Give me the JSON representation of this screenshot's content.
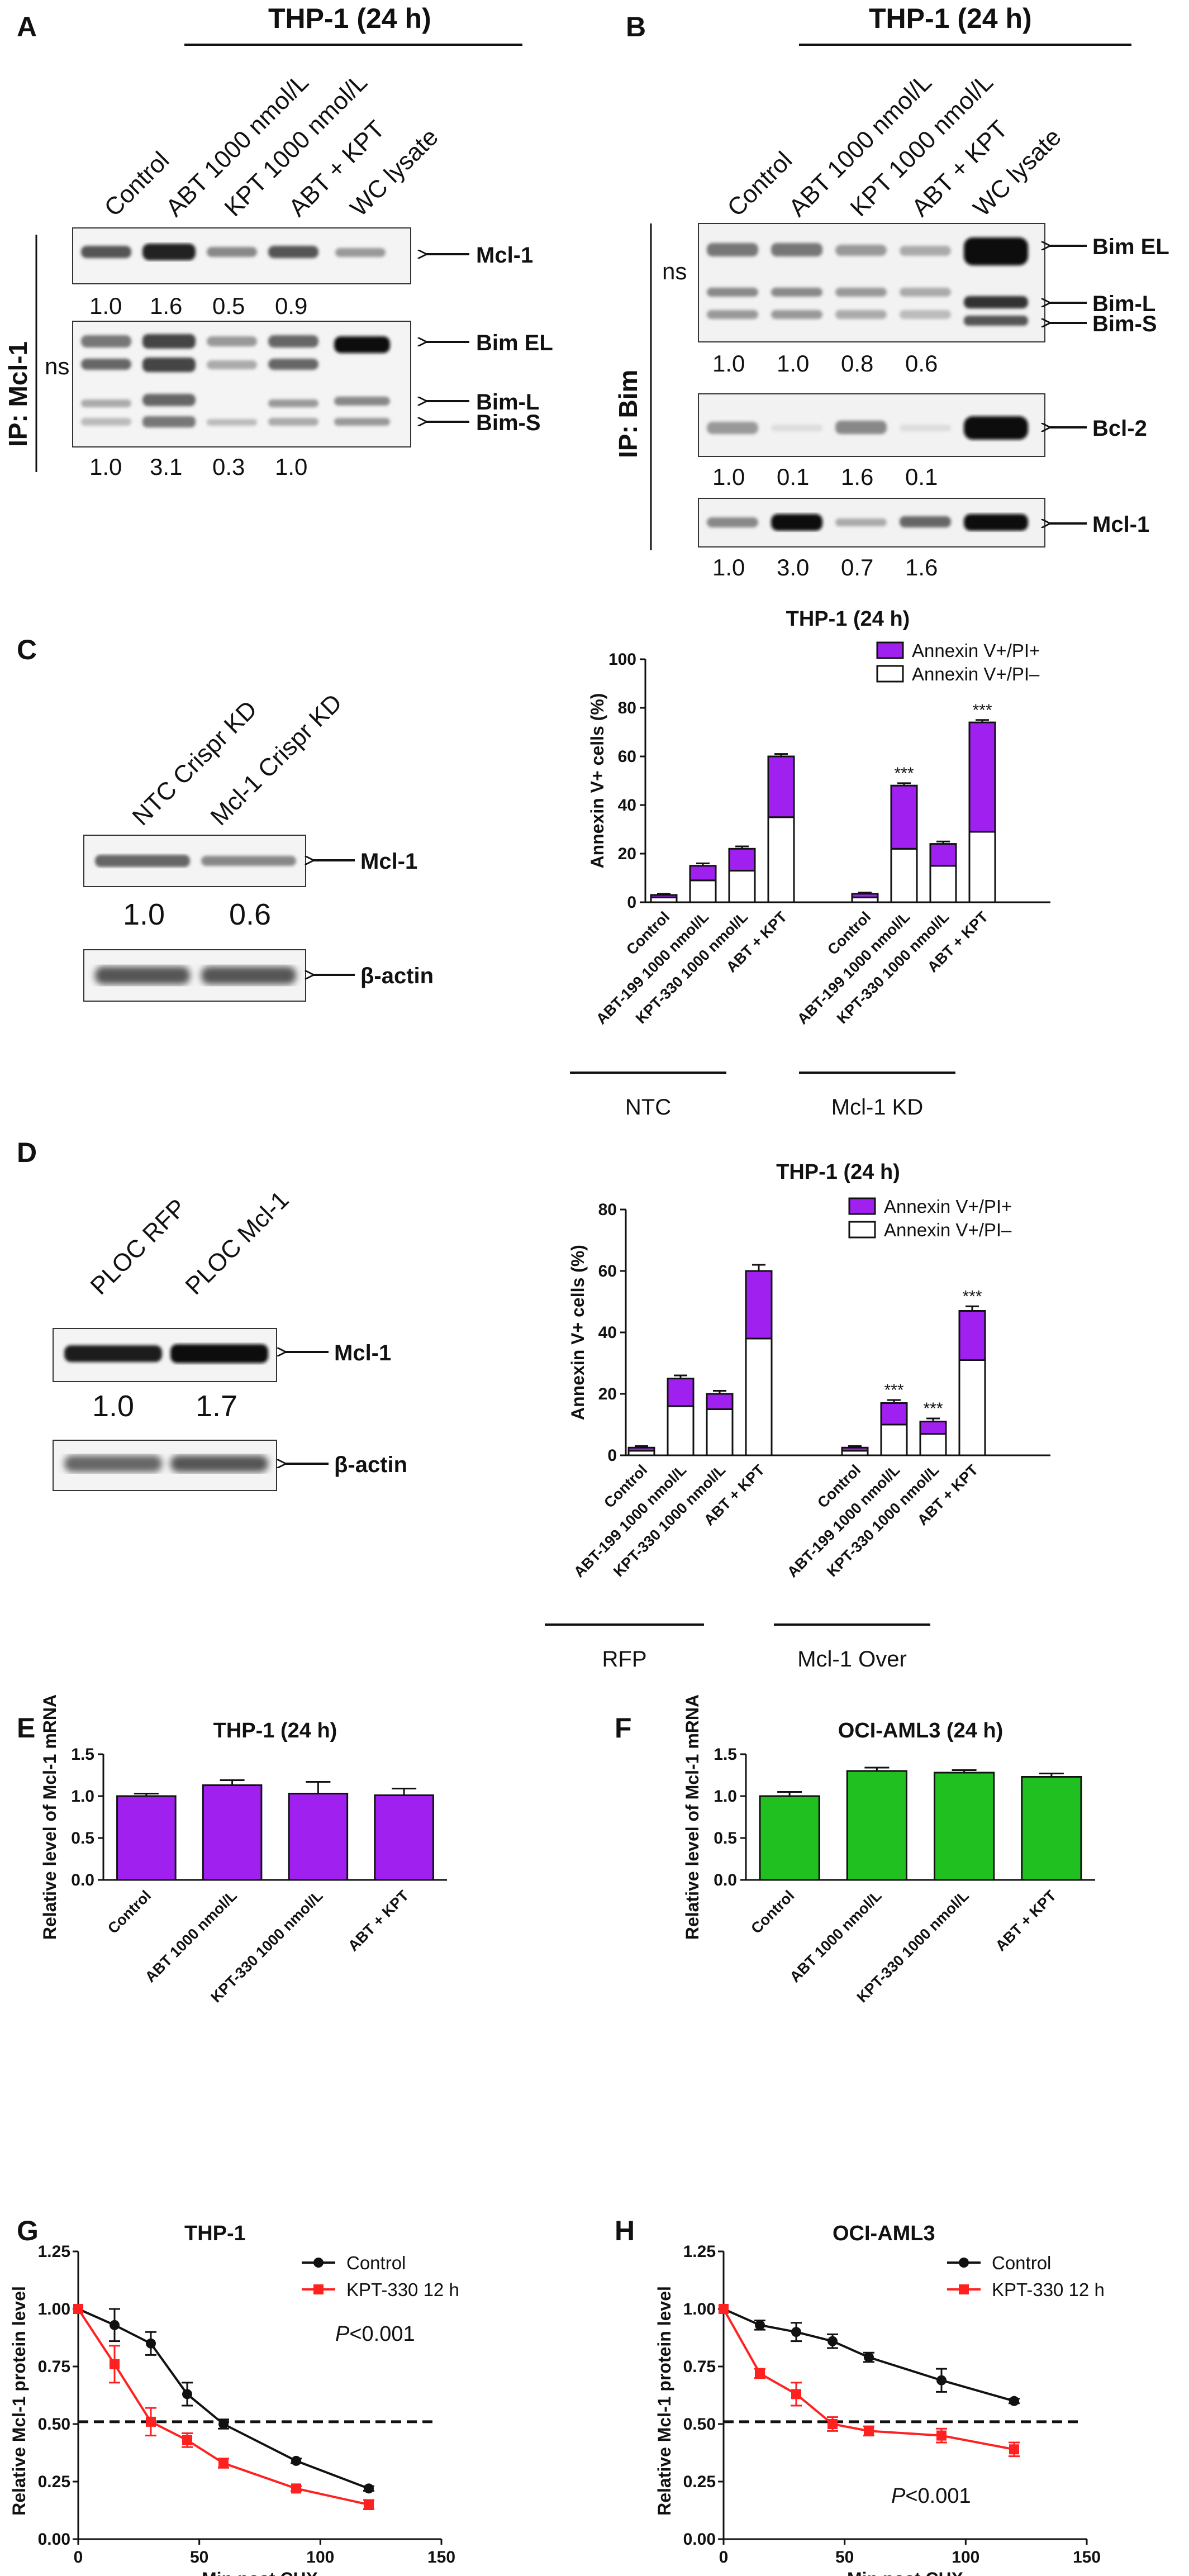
{
  "panels": {
    "A": {
      "label": "A",
      "header": "THP-1  (24 h)",
      "lanes": [
        "Control",
        "ABT 1000 nmol/L",
        "KPT 1000 nmol/L",
        "ABT + KPT",
        "WC lysate"
      ],
      "ip": "IP: Mcl-1",
      "ns": "ns",
      "blots": [
        {
          "labels": [
            "Mcl-1"
          ],
          "quant": [
            "1.0",
            "1.6",
            "0.5",
            "0.9"
          ]
        },
        {
          "labels": [
            "Bim EL",
            "Bim-L",
            "Bim-S"
          ],
          "quant": [
            "1.0",
            "3.1",
            "0.3",
            "1.0"
          ]
        }
      ]
    },
    "B": {
      "label": "B",
      "header": "THP-1  (24 h)",
      "lanes": [
        "Control",
        "ABT 1000 nmol/L",
        "KPT 1000 nmol/L",
        "ABT + KPT",
        "WC lysate"
      ],
      "ip": "IP: Bim",
      "ns": "ns",
      "blots": [
        {
          "labels": [
            "Bim EL",
            "Bim-L",
            "Bim-S"
          ],
          "quant": [
            "1.0",
            "1.0",
            "0.8",
            "0.6"
          ]
        },
        {
          "labels": [
            "Bcl-2"
          ],
          "quant": [
            "1.0",
            "0.1",
            "1.6",
            "0.1"
          ]
        },
        {
          "labels": [
            "Mcl-1"
          ],
          "quant": [
            "1.0",
            "3.0",
            "0.7",
            "1.6"
          ]
        }
      ]
    },
    "C": {
      "label": "C",
      "lanes": [
        "NTC Crispr KD",
        "Mcl-1 Crispr KD"
      ],
      "blots": [
        {
          "label": "Mcl-1",
          "quant": [
            "1.0",
            "0.6"
          ]
        },
        {
          "label": "β-actin",
          "quant": []
        }
      ]
    },
    "D": {
      "label": "D",
      "lanes": [
        "PLOC RFP",
        "PLOC Mcl-1"
      ],
      "blots": [
        {
          "label": "Mcl-1",
          "quant": [
            "1.0",
            "1.7"
          ]
        },
        {
          "label": "β-actin",
          "quant": []
        }
      ]
    },
    "E": {
      "label": "E"
    },
    "F": {
      "label": "F"
    },
    "G": {
      "label": "G"
    },
    "H": {
      "label": "H"
    }
  },
  "colors": {
    "purple": "#A020F0",
    "green": "#20C020",
    "red": "#FF2020",
    "black": "#111111"
  },
  "chart_data": [
    {
      "id": "C",
      "type": "bar",
      "stacked": true,
      "title": "THP-1 (24 h)",
      "ylabel": "Annexin V+ cells (%)",
      "ylim": [
        0,
        100
      ],
      "yticks": [
        0,
        20,
        40,
        60,
        80,
        100
      ],
      "categories": [
        "Control",
        "ABT-199 1000  nmol/L",
        "KPT-330 1000 nmol/L",
        "ABT + KPT",
        "Control",
        "ABT-199 1000 nmol/L",
        "KPT-330 1000 nmol/L",
        "ABT + KPT"
      ],
      "groups": [
        {
          "name": "NTC",
          "indices": [
            0,
            1,
            2,
            3
          ]
        },
        {
          "name": "Mcl-1 KD",
          "indices": [
            4,
            5,
            6,
            7
          ]
        }
      ],
      "series": [
        {
          "name": "Annexin V+/PI–",
          "values": [
            2,
            9,
            13,
            35,
            2,
            22,
            15,
            29
          ]
        },
        {
          "name": "Annexin V+/PI+",
          "values": [
            1,
            6,
            9,
            25,
            1.5,
            26,
            9,
            45
          ]
        }
      ],
      "errors": [
        0.5,
        1,
        1,
        1,
        0.5,
        1,
        1,
        1
      ],
      "annotations": [
        "",
        "",
        "",
        "",
        "",
        "***",
        "",
        "***"
      ],
      "legend": "top-right"
    },
    {
      "id": "D",
      "type": "bar",
      "stacked": true,
      "title": "THP-1 (24 h)",
      "ylabel": "Annexin V+ cells (%)",
      "ylim": [
        0,
        80
      ],
      "yticks": [
        0,
        20,
        40,
        60,
        80
      ],
      "categories": [
        "Control",
        "ABT-199 1000 nmol/L",
        "KPT-330 1000 nmol/L",
        "ABT + KPT",
        "Control",
        "ABT-199 1000 nmol/L",
        "KPT-330 1000 nmol/L",
        "ABT + KPT"
      ],
      "groups": [
        {
          "name": "RFP",
          "indices": [
            0,
            1,
            2,
            3
          ]
        },
        {
          "name": "Mcl-1 Over",
          "indices": [
            4,
            5,
            6,
            7
          ]
        }
      ],
      "series": [
        {
          "name": "Annexin V+/PI–",
          "values": [
            1.5,
            16,
            15,
            38,
            1.5,
            10,
            7,
            31
          ]
        },
        {
          "name": "Annexin V+/PI+",
          "values": [
            1,
            9,
            5,
            22,
            1,
            7,
            4,
            16
          ]
        }
      ],
      "errors": [
        0.5,
        1,
        1,
        2,
        0.5,
        1,
        1,
        1.5
      ],
      "annotations": [
        "",
        "",
        "",
        "",
        "",
        "***",
        "***",
        "***"
      ],
      "legend": "top-right"
    },
    {
      "id": "E",
      "type": "bar",
      "title": "THP-1 (24 h)",
      "ylabel": "Relative level of Mcl-1 mRNA",
      "ylim": [
        0,
        1.5
      ],
      "yticks": [
        "0.0",
        "0.5",
        "1.0",
        "1.5"
      ],
      "categories": [
        "Control",
        "ABT 1000 nmol/L",
        "KPT-330 1000 nmol/L",
        "ABT + KPT"
      ],
      "values": [
        1.0,
        1.13,
        1.03,
        1.01
      ],
      "errors": [
        0.03,
        0.06,
        0.14,
        0.08
      ]
    },
    {
      "id": "F",
      "type": "bar",
      "title": "OCI-AML3 (24 h)",
      "ylabel": "Relative level of Mcl-1 mRNA",
      "ylim": [
        0,
        1.5
      ],
      "yticks": [
        "0.0",
        "0.5",
        "1.0",
        "1.5"
      ],
      "categories": [
        "Control",
        "ABT 1000 nmol/L",
        "KPT-330 1000 nmol/L",
        "ABT + KPT"
      ],
      "values": [
        1.0,
        1.3,
        1.28,
        1.23
      ],
      "errors": [
        0.05,
        0.04,
        0.03,
        0.04
      ]
    },
    {
      "id": "G",
      "type": "line",
      "title": "THP-1",
      "xlabel": "Min post CHX",
      "ylabel": "Relative Mcl-1 protein level",
      "xlim": [
        0,
        150
      ],
      "ylim": [
        0,
        1.25
      ],
      "xticks": [
        0,
        50,
        100,
        150
      ],
      "yticks": [
        "0.00",
        "0.25",
        "0.50",
        "0.75",
        "1.00",
        "1.25"
      ],
      "series": [
        {
          "name": "Control",
          "x": [
            0,
            15,
            30,
            45,
            60,
            90,
            120
          ],
          "y": [
            1.0,
            0.93,
            0.85,
            0.63,
            0.5,
            0.34,
            0.22
          ],
          "err": [
            0,
            0.07,
            0.05,
            0.05,
            0.02,
            0.01,
            0.01
          ]
        },
        {
          "name": "KPT-330 12 h",
          "x": [
            0,
            15,
            30,
            45,
            60,
            90,
            120
          ],
          "y": [
            1.0,
            0.76,
            0.51,
            0.43,
            0.33,
            0.22,
            0.15
          ],
          "err": [
            0,
            0.08,
            0.06,
            0.03,
            0.02,
            0.01,
            0.02
          ]
        }
      ],
      "reference_y": 0.51,
      "p_prefix": "P",
      "p_suffix": "<0.001",
      "legend": "top-right"
    },
    {
      "id": "H",
      "type": "line",
      "title": "OCI-AML3",
      "xlabel": "Min post CHX",
      "ylabel": "Relative Mcl-1 protein level",
      "xlim": [
        0,
        150
      ],
      "ylim": [
        0,
        1.25
      ],
      "xticks": [
        0,
        50,
        100,
        150
      ],
      "yticks": [
        "0.00",
        "0.25",
        "0.50",
        "0.75",
        "1.00",
        "1.25"
      ],
      "series": [
        {
          "name": "Control",
          "x": [
            0,
            15,
            30,
            45,
            60,
            90,
            120
          ],
          "y": [
            1.0,
            0.93,
            0.9,
            0.86,
            0.79,
            0.69,
            0.6
          ],
          "err": [
            0,
            0.02,
            0.04,
            0.03,
            0.02,
            0.05,
            0.01
          ]
        },
        {
          "name": "KPT-330 12 h",
          "x": [
            0,
            15,
            30,
            45,
            60,
            90,
            120
          ],
          "y": [
            1.0,
            0.72,
            0.63,
            0.5,
            0.47,
            0.45,
            0.39
          ],
          "err": [
            0,
            0.02,
            0.05,
            0.03,
            0.02,
            0.03,
            0.03
          ]
        }
      ],
      "reference_y": 0.51,
      "p_prefix": "P",
      "p_suffix": "<0.001",
      "legend": "top-right"
    }
  ]
}
